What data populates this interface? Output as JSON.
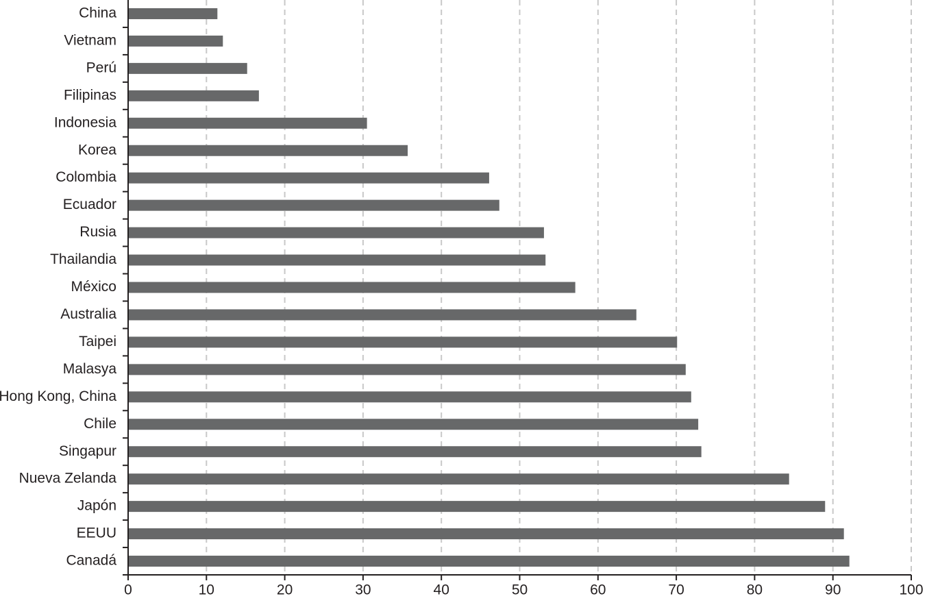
{
  "chart_data": {
    "type": "hbar",
    "categories": [
      "China",
      "Vietnam",
      "Perú",
      "Filipinas",
      "Indonesia",
      "Korea",
      "Colombia",
      "Ecuador",
      "Rusia",
      "Thailandia",
      "México",
      "Australia",
      "Taipei",
      "Malasya",
      "Hong Kong, China",
      "Chile",
      "Singapur",
      "Nueva Zelanda",
      "Japón",
      "EEUU",
      "Canadá"
    ],
    "values": [
      11.4,
      12.1,
      15.2,
      16.7,
      30.5,
      35.7,
      46.1,
      47.4,
      53.1,
      53.3,
      57.1,
      64.9,
      70.1,
      71.2,
      71.9,
      72.8,
      73.2,
      84.4,
      89.0,
      91.4,
      92.1
    ],
    "color": "#676869",
    "xlim": [
      0,
      100
    ],
    "xticks": [
      0,
      10,
      20,
      30,
      40,
      50,
      60,
      70,
      80,
      90,
      100
    ],
    "grid": true
  }
}
